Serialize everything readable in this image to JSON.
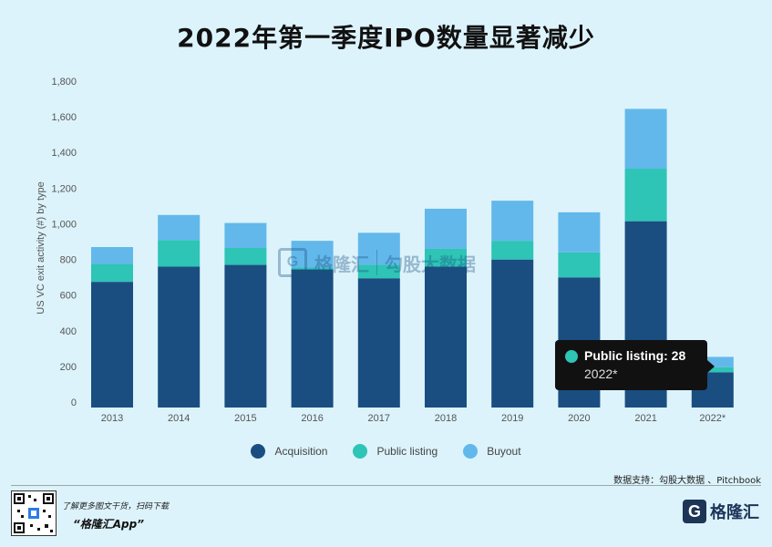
{
  "header": {
    "title": "2022年第一季度IPO数量显著减少"
  },
  "chart_data": {
    "type": "bar",
    "stacked": true,
    "ylabel": "US VC exit activity (#) by type",
    "ylim": [
      0,
      1800
    ],
    "yticks": [
      0,
      200,
      400,
      600,
      800,
      1000,
      1200,
      1400,
      1600,
      1800
    ],
    "ytick_labels": [
      "0",
      "200",
      "400",
      "600",
      "800",
      "1,000",
      "1,200",
      "1,400",
      "1,600",
      "1,800"
    ],
    "categories": [
      "2013",
      "2014",
      "2015",
      "2016",
      "2017",
      "2018",
      "2019",
      "2020",
      "2021",
      "2022*"
    ],
    "series": [
      {
        "name": "Acquisition",
        "color": "#1a4e80",
        "values": [
          705,
          790,
          800,
          775,
          725,
          790,
          830,
          730,
          1045,
          198
        ]
      },
      {
        "name": "Public listing",
        "color": "#2ec4b6",
        "values": [
          100,
          150,
          95,
          10,
          75,
          100,
          105,
          140,
          295,
          28
        ]
      },
      {
        "name": "Buyout",
        "color": "#62b8ea",
        "values": [
          95,
          140,
          140,
          150,
          180,
          225,
          225,
          225,
          335,
          58
        ]
      }
    ],
    "legend_position": "bottom",
    "grid": false,
    "tooltip": {
      "series": "Public listing",
      "category": "2022*",
      "text": "Public listing: 28",
      "subtext": "2022*"
    }
  },
  "watermark": {
    "logo_letter": "G",
    "brand": "格隆汇",
    "separator_text": "勾股大数据"
  },
  "footer": {
    "source": "数据支持：勾股大数据 、Pitchbook",
    "line1": "了解更多图文干货，扫码下载",
    "line2": "“格隆汇App”",
    "brand_letter": "G",
    "brand_name": "格隆汇"
  }
}
